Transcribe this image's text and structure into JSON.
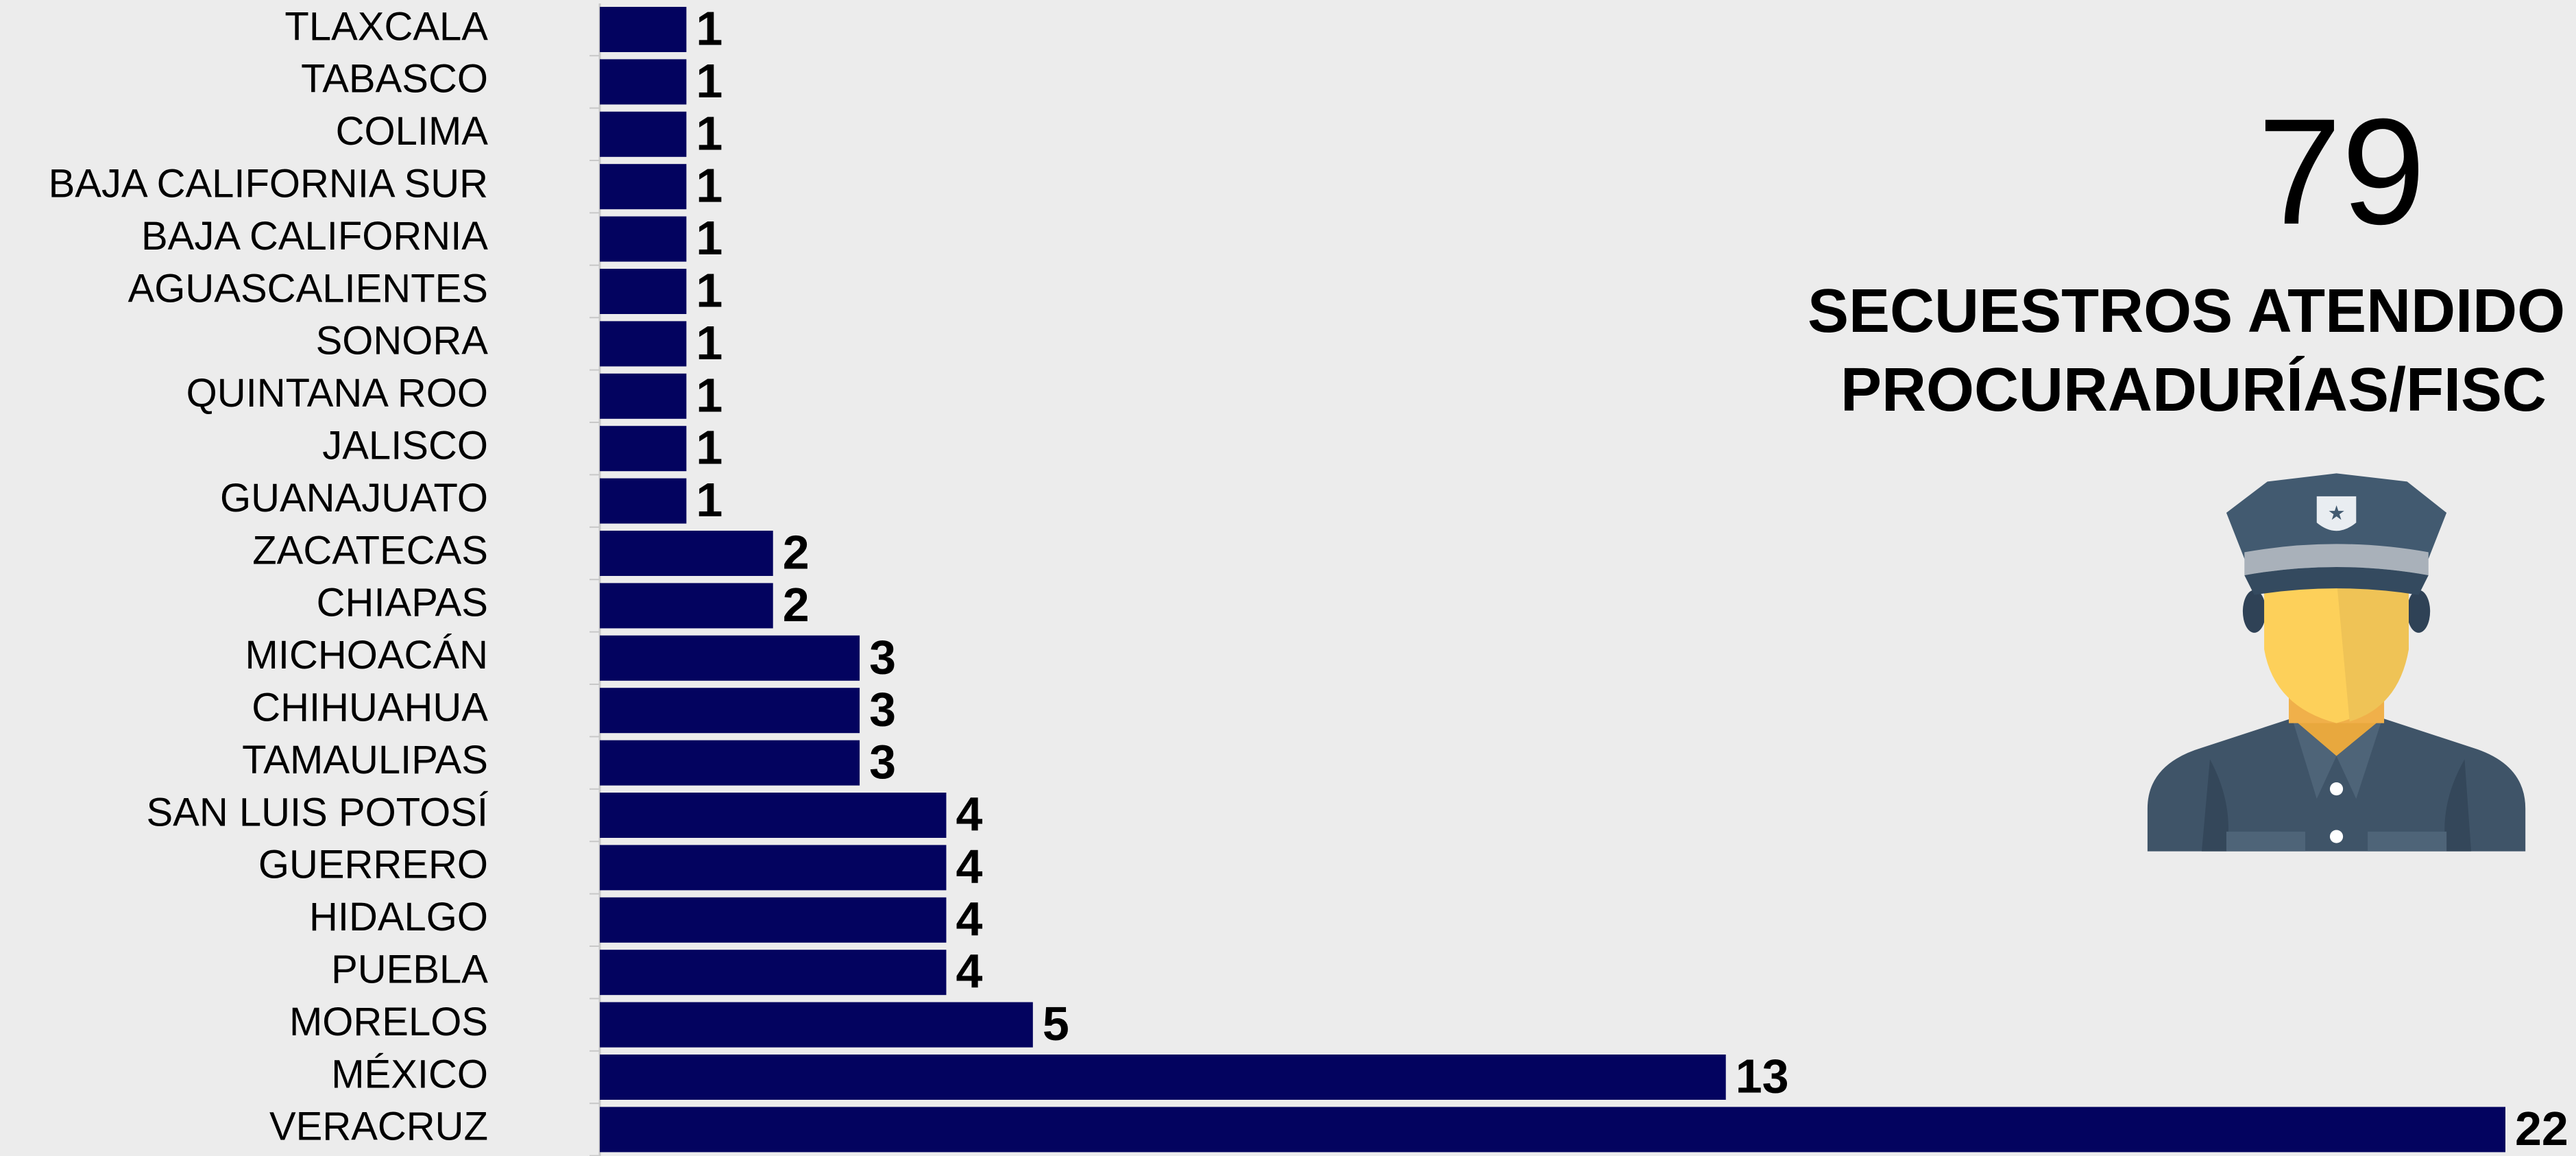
{
  "chart_data": {
    "type": "bar",
    "orientation": "horizontal",
    "categories": [
      "TLAXCALA",
      "TABASCO",
      "COLIMA",
      "BAJA CALIFORNIA SUR",
      "BAJA CALIFORNIA",
      "AGUASCALIENTES",
      "SONORA",
      "QUINTANA ROO",
      "JALISCO",
      "GUANAJUATO",
      "ZACATECAS",
      "CHIAPAS",
      "MICHOACÁN",
      "CHIHUAHUA",
      "TAMAULIPAS",
      "SAN LUIS POTOSÍ",
      "GUERRERO",
      "HIDALGO",
      "PUEBLA",
      "MORELOS",
      "MÉXICO",
      "VERACRUZ"
    ],
    "values": [
      1,
      1,
      1,
      1,
      1,
      1,
      1,
      1,
      1,
      1,
      2,
      2,
      3,
      3,
      3,
      4,
      4,
      4,
      4,
      5,
      13,
      22
    ],
    "color": "#03035f",
    "xlim": [
      0,
      22
    ]
  },
  "kpi": {
    "value": 79,
    "title_lines": [
      "SECUESTROS ATENDIDO",
      "PROCURADURÍAS/FISC"
    ]
  }
}
